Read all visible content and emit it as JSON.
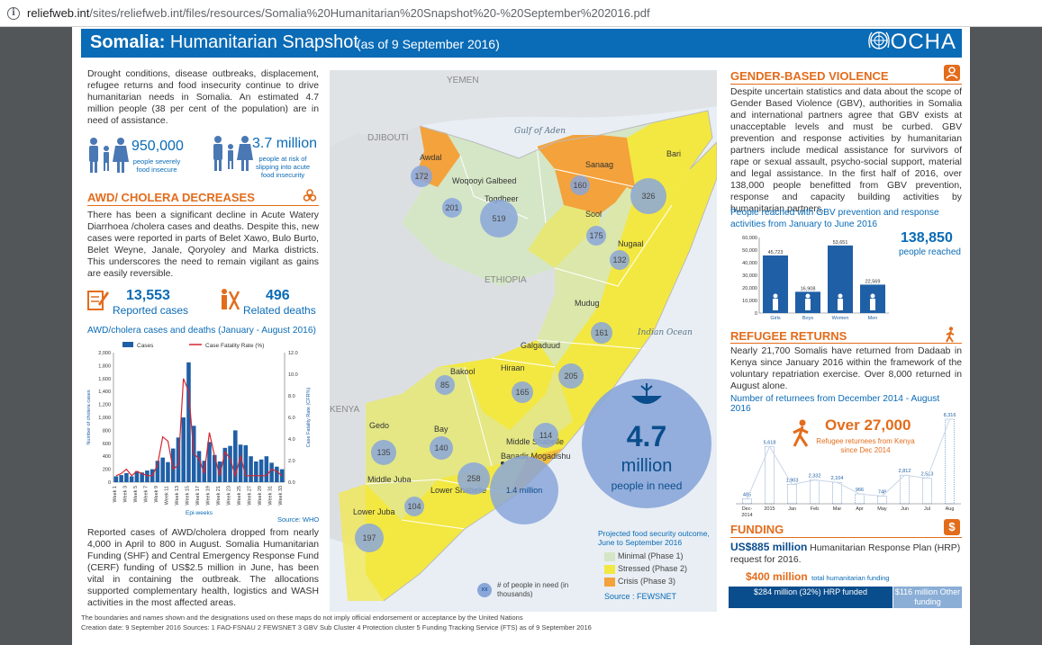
{
  "browser": {
    "url_host": "reliefweb.int",
    "url_path": "/sites/reliefweb.int/files/resources/Somalia%20Humanitarian%20Snapshot%20-%20September%202016.pdf"
  },
  "header": {
    "title_bold": "Somalia:",
    "title_rest": " Humanitarian Snapshot",
    "subtitle": "(as of 9 September 2016)",
    "logo": "OCHA"
  },
  "intro": {
    "text": "Drought conditions, disease outbreaks, displacement, refugee returns and food insecurity continue to drive humanitarian needs in Somalia. An estimated 4.7 million people (38 per cent of the population) are in need of assistance.",
    "stat1_value": "950,000",
    "stat1_label": "people severely food insecure",
    "stat2_value": "3.7 million",
    "stat2_label": "people at risk of slipping into acute food insecurity"
  },
  "cholera": {
    "heading": "AWD/ CHOLERA DECREASES",
    "text": "There has been a significant decline in Acute Watery Diarrhoea /cholera cases and deaths. Despite this, new cases were reported in parts of Belet Xawo, Bulo Burto, Belet Weyne, Janale, Qoryoley and Marka districts. This underscores the need to remain vigilant as gains are easily reversible.",
    "cases_value": "13,553",
    "cases_label": "Reported cases",
    "deaths_value": "496",
    "deaths_label": "Related deaths",
    "chart_title": "AWD/cholera cases and deaths (January - August 2016)",
    "source": "Source: WHO",
    "text2": "Reported cases of AWD/cholera dropped from nearly 4,000 in April to 800 in August. Somalia Humanitarian Funding (SHF) and Central Emergency Response Fund (CERF) funding of US$2.5 million in June, has been vital in containing the outbreak. The allocations supported complementary health, logistics and WASH activities in the most affected areas."
  },
  "gbv": {
    "heading": "GENDER-BASED VIOLENCE",
    "text": "Despite uncertain statistics and data about the scope of Gender Based Violence (GBV), authorities in Somalia and international partners agree that GBV exists at unacceptable levels and must be curbed. GBV prevention and response activities by humanitarian partners include medical assistance for survivors of rape or sexual assault, psycho-social support, material and legal assistance. In the first half of 2016, over 138,000 people benefitted from GBV prevention, response and capacity building activities by humanitarian partners.",
    "chart_title": "People reached with GBV prevention and response activities from January to June 2016",
    "total_value": "138,850",
    "total_label": "people reached"
  },
  "refugee": {
    "heading": "REFUGEE RETURNS",
    "text": "Nearly 21,700 Somalis have returned from Dadaab in Kenya since January 2016 within the framework of the voluntary repatriation exercise. Over 8,000 returned in August alone.",
    "chart_title": "Number of returnees from December 2014 - August 2016",
    "big_value": "Over 27,000",
    "big_label": "Refugee returnees from Kenya since Dec 2014"
  },
  "funding": {
    "heading": "FUNDING",
    "hrp_value": "US$885 million",
    "hrp_label": "Humanitarian Response Plan (HRP) request for 2016.",
    "total_value": "$400 million",
    "total_label": "total humanitarian funding",
    "bar_a": "$284 million (32%) HRP funded",
    "bar_b": "$116 million Other funding"
  },
  "map": {
    "countries": [
      "YEMEN",
      "DJIBOUTI",
      "ETHIOPIA",
      "KENYA"
    ],
    "seas": [
      "Gulf of Aden",
      "Indian Ocean"
    ],
    "regions": [
      "Awdal",
      "Woqooyi Galbeed",
      "Togdheer",
      "Sanaag",
      "Bari",
      "Sool",
      "Nugaal",
      "Mudug",
      "Galgaduud",
      "Hiraan",
      "Bakool",
      "Bay",
      "Gedo",
      "Middle Juba",
      "Lower Juba",
      "Lower Shabelle",
      "Middle Shabelle",
      "Banadir Mogadishu"
    ],
    "circles": [
      "172",
      "201",
      "519",
      "160",
      "326",
      "175",
      "132",
      "161",
      "205",
      "165",
      "85",
      "114",
      "140",
      "135",
      "258",
      "104",
      "197"
    ],
    "banadir_value": "1.4 million",
    "pin_value": "4.7",
    "pin_unit": "million",
    "pin_label": "people in need",
    "legend_title": "Projected food security outcome, June to September 2016",
    "legend_items": [
      "Minimal (Phase 1)",
      "Stressed (Phase 2)",
      "Crisis (Phase 3)"
    ],
    "legend_colors": [
      "#d5e6c6",
      "#f3e842",
      "#f4a23b"
    ],
    "legend_source": "Source : FEWSNET",
    "bubble_label": "# of people in need (in thousands)",
    "bubble_key": "xx"
  },
  "footer": {
    "line1": "The boundaries and names shown and the designations used on these maps do not imply official endorsement or acceptance by the United Nations",
    "line2": "Creation date: 9 September 2016    Sources: 1 FAO-FSNAU 2 FEWSNET  3 GBV Sub Cluster  4 Protection cluster  5 Funding Tracking Service (FTS) as of 9 September 2016"
  },
  "chart_data": [
    {
      "type": "bar",
      "title": "AWD/cholera cases and deaths (January - August 2016)",
      "legend": [
        "Cases",
        "Case Fatality Rate (%)"
      ],
      "xlabel": "Epi-weeks",
      "ylabel": "Number of cholera cases",
      "y2label": "Case Fatality Rate (CFR%)",
      "ylim": [
        0,
        2000
      ],
      "y2lim": [
        0,
        12
      ],
      "categories": [
        "Week 1",
        "2",
        "3",
        "4",
        "5",
        "6",
        "7",
        "8",
        "9",
        "10",
        "11",
        "12",
        "13",
        "14",
        "15",
        "16",
        "17",
        "18",
        "19",
        "20",
        "21",
        "22",
        "23",
        "24",
        "25",
        "26",
        "27",
        "28",
        "29",
        "30",
        "31",
        "32",
        "33"
      ],
      "tick_labels": [
        "Week 1",
        "Week 3",
        "Week 5",
        "Week 7",
        "Week 9",
        "Week 11",
        "Week 13",
        "Week 15",
        "Week 17",
        "Week 19",
        "Week 21",
        "Week 23",
        "Week 25",
        "Week 27",
        "Week 29",
        "Week 31",
        "Week 33"
      ],
      "series": [
        {
          "name": "Cases",
          "values": [
            90,
            110,
            140,
            90,
            170,
            150,
            180,
            200,
            330,
            380,
            310,
            520,
            690,
            1000,
            1850,
            870,
            480,
            330,
            620,
            420,
            320,
            530,
            560,
            800,
            580,
            570,
            400,
            320,
            350,
            400,
            300,
            240,
            200
          ]
        },
        {
          "name": "Case Fatality Rate (%)",
          "values": [
            0.6,
            0.8,
            1.2,
            0.6,
            1.0,
            0.8,
            0.6,
            0.6,
            1.6,
            4.2,
            3.8,
            1.2,
            1.6,
            9.6,
            8.4,
            2.6,
            2.2,
            0.8,
            4.6,
            2.4,
            0.6,
            2.8,
            2.2,
            0.6,
            2.4,
            0.6,
            0.6,
            0.6,
            0.6,
            0.6,
            1.2,
            1.0,
            0.6
          ]
        }
      ]
    },
    {
      "type": "bar",
      "title": "People reached with GBV prevention and response activities from January to June 2016",
      "ylim": [
        0,
        60000
      ],
      "categories": [
        "Girls",
        "Boys",
        "Women",
        "Men"
      ],
      "values": [
        45723,
        16908,
        53651,
        22569
      ],
      "data_labels": [
        "45,723",
        "16,908",
        "53,651",
        "22,569"
      ]
    },
    {
      "type": "bar",
      "title": "Number of returnees from December 2014 - August 2016",
      "categories": [
        "Dec-2014",
        "2015",
        "Jan",
        "Feb",
        "Mar",
        "Apr",
        "May",
        "Jun",
        "Jul",
        "Aug"
      ],
      "values": [
        485,
        5618,
        1903,
        2332,
        2104,
        966,
        748,
        2812,
        2513,
        8316
      ],
      "data_labels": [
        "485",
        "5,618",
        "1,903",
        "2,332",
        "2,104",
        "966",
        "748",
        "2,812",
        "2,513",
        "8,316"
      ]
    }
  ]
}
